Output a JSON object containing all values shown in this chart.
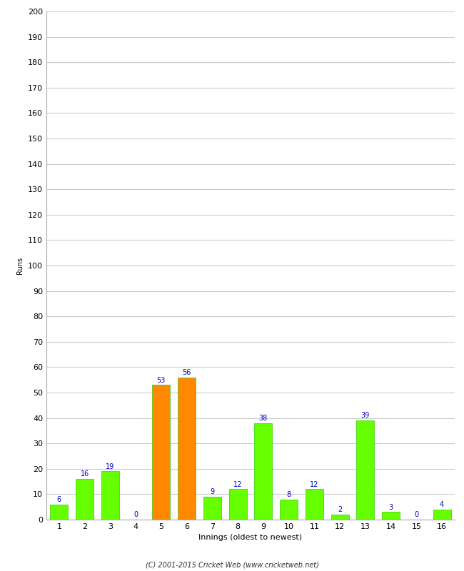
{
  "xlabel": "Innings (oldest to newest)",
  "ylabel": "Runs",
  "categories": [
    1,
    2,
    3,
    4,
    5,
    6,
    7,
    8,
    9,
    10,
    11,
    12,
    13,
    14,
    15,
    16
  ],
  "values": [
    6,
    16,
    19,
    0,
    53,
    56,
    9,
    12,
    38,
    8,
    12,
    2,
    39,
    3,
    0,
    4
  ],
  "bar_colors": [
    "#66ff00",
    "#66ff00",
    "#66ff00",
    "#66ff00",
    "#ff8800",
    "#ff8800",
    "#66ff00",
    "#66ff00",
    "#66ff00",
    "#66ff00",
    "#66ff00",
    "#66ff00",
    "#66ff00",
    "#66ff00",
    "#66ff00",
    "#66ff00"
  ],
  "ylim": [
    0,
    200
  ],
  "yticks": [
    0,
    10,
    20,
    30,
    40,
    50,
    60,
    70,
    80,
    90,
    100,
    110,
    120,
    130,
    140,
    150,
    160,
    170,
    180,
    190,
    200
  ],
  "label_color": "#0000cc",
  "grid_color": "#cccccc",
  "background_color": "#ffffff",
  "footer": "(C) 2001-2015 Cricket Web (www.cricketweb.net)",
  "label_fontsize": 7,
  "axis_tick_fontsize": 8,
  "xlabel_fontsize": 8,
  "ylabel_fontsize": 7,
  "bar_edge_color": "#33cc00",
  "bar_width": 0.7,
  "spine_color": "#aaaaaa"
}
